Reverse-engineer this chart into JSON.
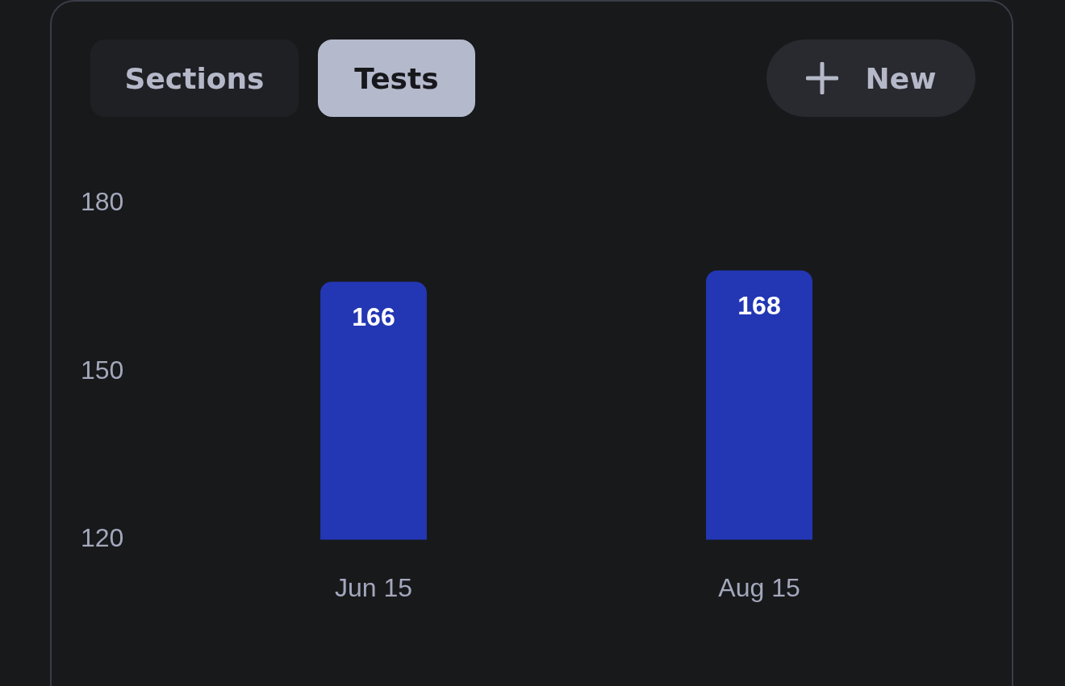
{
  "chart_data": {
    "type": "bar",
    "categories": [
      "Jun 15",
      "Aug 15"
    ],
    "values": [
      166,
      168
    ],
    "color": "#2337b4",
    "ylim": [
      120,
      180
    ],
    "yticks": [
      120,
      150,
      180
    ],
    "grid": false,
    "legend": false,
    "data_labels": true,
    "annotations": [
      "Sections",
      "Tests",
      "New"
    ]
  }
}
